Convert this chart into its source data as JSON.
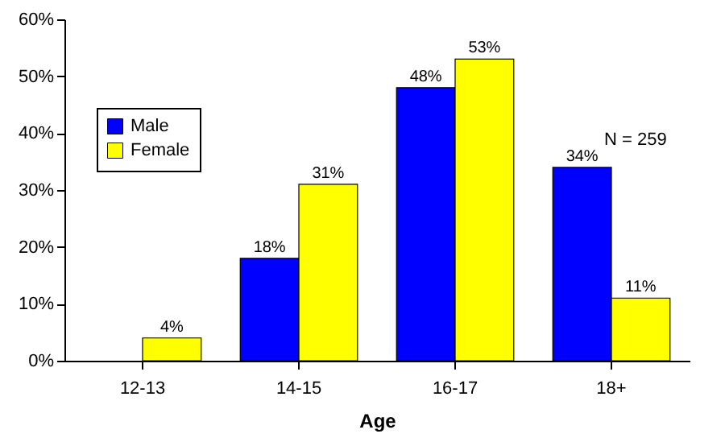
{
  "chart_data": {
    "type": "bar",
    "xlabel": "Age",
    "categories": [
      "12-13",
      "14-15",
      "16-17",
      "18+"
    ],
    "series": [
      {
        "name": "Male",
        "color": "#0000ff",
        "values": [
          null,
          18,
          48,
          34
        ],
        "value_labels": [
          null,
          "18%",
          "48%",
          "34%"
        ]
      },
      {
        "name": "Female",
        "color": "#ffff00",
        "values": [
          4,
          31,
          53,
          11
        ],
        "value_labels": [
          "4%",
          "31%",
          "53%",
          "11%"
        ]
      }
    ],
    "ylim": [
      0,
      60
    ],
    "yticks": [
      {
        "value": 0,
        "label": "0%"
      },
      {
        "value": 10,
        "label": "10%"
      },
      {
        "value": 20,
        "label": "20%"
      },
      {
        "value": 30,
        "label": "30%"
      },
      {
        "value": 40,
        "label": "40%"
      },
      {
        "value": 50,
        "label": "50%"
      },
      {
        "value": 60,
        "label": "60%"
      }
    ],
    "legend": "top left",
    "annotations": [
      "N = 259"
    ]
  }
}
